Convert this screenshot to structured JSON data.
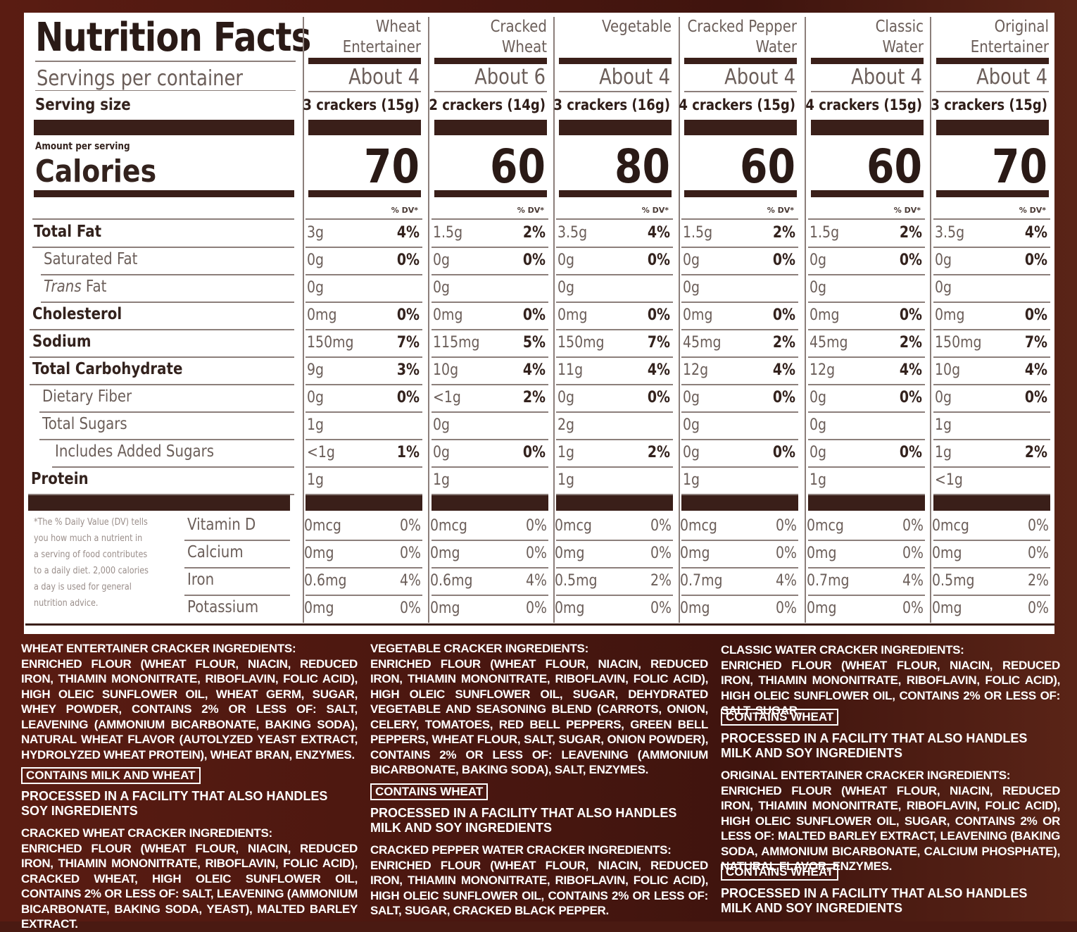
{
  "label": {
    "title": "Nutrition Facts",
    "servings_label": "Servings per container",
    "serving_size_label": "Serving size",
    "amount_per_serving": "Amount per serving",
    "calories_label": "Calories",
    "dv_header": "% DV*",
    "footnote": "*The % Daily Value (DV) tells you how much a nutrient in a serving of food contributes to a daily diet. 2,000 calories a day is used for general nutrition advice.",
    "nutrient_rows": [
      "Total Fat",
      "Saturated Fat",
      "Trans Fat",
      "Cholesterol",
      "Sodium",
      "Total Carbohydrate",
      "Dietary Fiber",
      "Total Sugars",
      "Includes Added Sugars",
      "Protein"
    ],
    "trans_prefix": "Trans",
    "trans_suffix": " Fat",
    "vitamin_rows": [
      "Vitamin D",
      "Calcium",
      "Iron",
      "Potassium"
    ]
  },
  "products": [
    {
      "name_line1": "Wheat",
      "name_line2": "Entertainer",
      "servings": "About 4",
      "serving_size": "3 crackers  (15g)",
      "calories": "70",
      "nutrients": [
        [
          "3g",
          "4%"
        ],
        [
          "0g",
          "0%"
        ],
        [
          "0g",
          ""
        ],
        [
          "0mg",
          "0%"
        ],
        [
          "150mg",
          "7%"
        ],
        [
          "9g",
          "3%"
        ],
        [
          "0g",
          "0%"
        ],
        [
          "1g",
          ""
        ],
        [
          "<1g",
          "1%"
        ],
        [
          "1g",
          ""
        ]
      ],
      "vitamins": [
        [
          "0mcg",
          "0%"
        ],
        [
          "0mg",
          "0%"
        ],
        [
          "0.6mg",
          "4%"
        ],
        [
          "0mg",
          "0%"
        ]
      ]
    },
    {
      "name_line1": "Cracked",
      "name_line2": "Wheat",
      "servings": "About 6",
      "serving_size": "2 crackers  (14g)",
      "calories": "60",
      "nutrients": [
        [
          "1.5g",
          "2%"
        ],
        [
          "0g",
          "0%"
        ],
        [
          "0g",
          ""
        ],
        [
          "0mg",
          "0%"
        ],
        [
          "115mg",
          "5%"
        ],
        [
          "10g",
          "4%"
        ],
        [
          "<1g",
          "2%"
        ],
        [
          "0g",
          ""
        ],
        [
          "0g",
          "0%"
        ],
        [
          "1g",
          ""
        ]
      ],
      "vitamins": [
        [
          "0mcg",
          "0%"
        ],
        [
          "0mg",
          "0%"
        ],
        [
          "0.6mg",
          "4%"
        ],
        [
          "0mg",
          "0%"
        ]
      ]
    },
    {
      "name_line1": "Vegetable",
      "name_line2": "",
      "servings": "About 4",
      "serving_size": "3 crackers  (16g)",
      "calories": "80",
      "nutrients": [
        [
          "3.5g",
          "4%"
        ],
        [
          "0g",
          "0%"
        ],
        [
          "0g",
          ""
        ],
        [
          "0mg",
          "0%"
        ],
        [
          "150mg",
          "7%"
        ],
        [
          "11g",
          "4%"
        ],
        [
          "0g",
          "0%"
        ],
        [
          "2g",
          ""
        ],
        [
          "1g",
          "2%"
        ],
        [
          "1g",
          ""
        ]
      ],
      "vitamins": [
        [
          "0mcg",
          "0%"
        ],
        [
          "0mg",
          "0%"
        ],
        [
          "0.5mg",
          "2%"
        ],
        [
          "0mg",
          "0%"
        ]
      ]
    },
    {
      "name_line1": "Cracked Pepper",
      "name_line2": "Water",
      "servings": "About 4",
      "serving_size": "4 crackers  (15g)",
      "calories": "60",
      "nutrients": [
        [
          "1.5g",
          "2%"
        ],
        [
          "0g",
          "0%"
        ],
        [
          "0g",
          ""
        ],
        [
          "0mg",
          "0%"
        ],
        [
          "45mg",
          "2%"
        ],
        [
          "12g",
          "4%"
        ],
        [
          "0g",
          "0%"
        ],
        [
          "0g",
          ""
        ],
        [
          "0g",
          "0%"
        ],
        [
          "1g",
          ""
        ]
      ],
      "vitamins": [
        [
          "0mcg",
          "0%"
        ],
        [
          "0mg",
          "0%"
        ],
        [
          "0.7mg",
          "4%"
        ],
        [
          "0mg",
          "0%"
        ]
      ]
    },
    {
      "name_line1": "Classic",
      "name_line2": "Water",
      "servings": "About 4",
      "serving_size": "4 crackers  (15g)",
      "calories": "60",
      "nutrients": [
        [
          "1.5g",
          "2%"
        ],
        [
          "0g",
          "0%"
        ],
        [
          "0g",
          ""
        ],
        [
          "0mg",
          "0%"
        ],
        [
          "45mg",
          "2%"
        ],
        [
          "12g",
          "4%"
        ],
        [
          "0g",
          "0%"
        ],
        [
          "0g",
          ""
        ],
        [
          "0g",
          "0%"
        ],
        [
          "1g",
          ""
        ]
      ],
      "vitamins": [
        [
          "0mcg",
          "0%"
        ],
        [
          "0mg",
          "0%"
        ],
        [
          "0.7mg",
          "4%"
        ],
        [
          "0mg",
          "0%"
        ]
      ]
    },
    {
      "name_line1": "Original",
      "name_line2": "Entertainer",
      "servings": "About 4",
      "serving_size": "3 crackers  (15g)",
      "calories": "70",
      "nutrients": [
        [
          "3.5g",
          "4%"
        ],
        [
          "0g",
          "0%"
        ],
        [
          "0g",
          ""
        ],
        [
          "0mg",
          "0%"
        ],
        [
          "150mg",
          "7%"
        ],
        [
          "10g",
          "4%"
        ],
        [
          "0g",
          "0%"
        ],
        [
          "1g",
          ""
        ],
        [
          "1g",
          "2%"
        ],
        [
          "<1g",
          ""
        ]
      ],
      "vitamins": [
        [
          "0mcg",
          "0%"
        ],
        [
          "0mg",
          "0%"
        ],
        [
          "0.5mg",
          "2%"
        ],
        [
          "0mg",
          "0%"
        ]
      ]
    }
  ],
  "ingredients": {
    "wheat_entertainer": {
      "heading": "WHEAT ENTERTAINER CRACKER INGREDIENTS:",
      "text": "ENRICHED FLOUR (WHEAT FLOUR, NIACIN, REDUCED IRON, THIAMIN MONONITRATE, RIBOFLAVIN, FOLIC ACID), HIGH OLEIC SUNFLOWER OIL, WHEAT GERM, SUGAR, WHEY POWDER, CONTAINS 2% OR LESS OF: SALT, LEAVENING (AMMONIUM BICARBONATE, BAKING SODA), NATURAL WHEAT FLAVOR (AUTOLYZED YEAST EXTRACT, HYDROLYZED WHEAT PROTEIN), WHEAT BRAN, ENZYMES.",
      "badge": "CONTAINS MILK AND WHEAT",
      "note": "PROCESSED IN A FACILITY THAT ALSO HANDLES SOY INGREDIENTS"
    },
    "cracked_wheat": {
      "heading": "CRACKED WHEAT CRACKER INGREDIENTS:",
      "text": "ENRICHED FLOUR (WHEAT FLOUR, NIACIN, REDUCED IRON, THIAMIN MONONITRATE, RIBOFLAVIN, FOLIC ACID), CRACKED WHEAT, HIGH OLEIC SUNFLOWER OIL, CONTAINS 2% OR LESS OF: SALT, LEAVENING (AMMONIUM BICARBONATE, BAKING SODA, YEAST), MALTED BARLEY EXTRACT."
    },
    "vegetable": {
      "heading": "VEGETABLE CRACKER INGREDIENTS:",
      "text": "ENRICHED FLOUR (WHEAT FLOUR, NIACIN, REDUCED IRON, THIAMIN MONONITRATE, RIBOFLAVIN, FOLIC ACID), HIGH OLEIC SUNFLOWER OIL, SUGAR, DEHYDRATED VEGETABLE AND SEASONING BLEND (CARROTS, ONION, CELERY, TOMATOES, RED BELL PEPPERS, GREEN BELL PEPPERS, WHEAT FLOUR, SALT, SUGAR, ONION POWDER), CONTAINS 2% OR LESS OF: LEAVENING (AMMONIUM BICARBONATE, BAKING SODA), SALT, ENZYMES.",
      "badge": "CONTAINS WHEAT",
      "note": "PROCESSED IN A FACILITY THAT ALSO HANDLES MILK AND SOY INGREDIENTS"
    },
    "cracked_pepper": {
      "heading": "CRACKED PEPPER WATER CRACKER INGREDIENTS:",
      "text": "ENRICHED FLOUR (WHEAT FLOUR, NIACIN, REDUCED IRON, THIAMIN MONONITRATE, RIBOFLAVIN, FOLIC ACID), HIGH OLEIC SUNFLOWER OIL, CONTAINS 2% OR LESS OF: SALT, SUGAR, CRACKED BLACK PEPPER."
    },
    "classic_water": {
      "heading": "CLASSIC WATER CRACKER INGREDIENTS:",
      "text": "ENRICHED FLOUR (WHEAT FLOUR, NIACIN, REDUCED IRON, THIAMIN MONONITRATE, RIBOFLAVIN, FOLIC ACID), HIGH OLEIC SUNFLOWER OIL, CONTAINS 2% OR LESS OF: SALT, SUGAR.",
      "badge": "CONTAINS WHEAT",
      "note": "PROCESSED IN A FACILITY THAT ALSO HANDLES MILK AND SOY INGREDIENTS"
    },
    "original_entertainer": {
      "heading": "ORIGINAL ENTERTAINER CRACKER INGREDIENTS:",
      "text": "ENRICHED FLOUR (WHEAT FLOUR, NIACIN, REDUCED IRON, THIAMIN MONONITRATE, RIBOFLAVIN, FOLIC ACID), HIGH OLEIC SUNFLOWER OIL, SUGAR, CONTAINS 2% OR LESS OF: MALTED BARLEY EXTRACT, LEAVENING (BAKING SODA, AMMONIUM BICARBONATE, CALCIUM PHOSPHATE), NATURAL FLAVOR, ENZYMES.",
      "badge": "CONTAINS WHEAT",
      "note": "PROCESSED IN A FACILITY THAT ALSO HANDLES MILK AND SOY INGREDIENTS"
    }
  }
}
